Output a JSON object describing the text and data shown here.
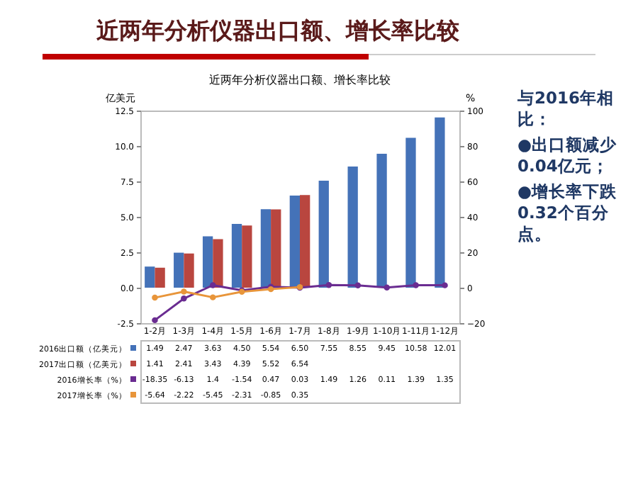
{
  "chart_data": {
    "type": "bar",
    "title": "近两年分析仪器出口额、增长率比较",
    "subtitle": "近两年分析仪器出口额、增长率比较",
    "ylabel": "亿美元",
    "y2label": "%",
    "categories": [
      "1-2月",
      "1-3月",
      "1-4月",
      "1-5月",
      "1-6月",
      "1-7月",
      "1-8月",
      "1-9月",
      "1-10月",
      "1-11月",
      "1-12月"
    ],
    "series": [
      {
        "name": "2016出口额（亿美元）",
        "color": "#4472b8",
        "values": [
          1.49,
          2.47,
          3.63,
          4.5,
          5.54,
          6.5,
          7.55,
          8.55,
          9.45,
          10.58,
          12.01
        ],
        "value_labels": [
          "1.49",
          "2.47",
          "3.63",
          "4.50",
          "5.54",
          "6.50",
          "7.55",
          "8.55",
          "9.45",
          "10.58",
          "12.01"
        ]
      },
      {
        "name": "2017出口额（亿美元）",
        "color": "#b9463f",
        "values": [
          1.41,
          2.41,
          3.43,
          4.39,
          5.52,
          6.54,
          null,
          null,
          null,
          null,
          null
        ],
        "value_labels": [
          "1.41",
          "2.41",
          "3.43",
          "4.39",
          "5.52",
          "6.54",
          null,
          null,
          null,
          null,
          null
        ]
      },
      {
        "name": "2016增长率（%）",
        "type": "line",
        "axis": "y2",
        "color": "#6a2c91",
        "values": [
          -18.35,
          -6.13,
          1.4,
          -1.54,
          0.47,
          0.03,
          1.49,
          1.26,
          0.11,
          1.39,
          1.35
        ],
        "value_labels": [
          "-18.35",
          "-6.13",
          "1.4",
          "-1.54",
          "0.47",
          "0.03",
          "1.49",
          "1.26",
          "0.11",
          "1.39",
          "1.35"
        ]
      },
      {
        "name": "2017增长率（%）",
        "type": "line",
        "axis": "y2",
        "color": "#e8953a",
        "values": [
          -5.64,
          -2.22,
          -5.45,
          -2.31,
          -0.85,
          0.35,
          null,
          null,
          null,
          null,
          null
        ],
        "value_labels": [
          "-5.64",
          "-2.22",
          "-5.45",
          "-2.31",
          "-0.85",
          "0.35",
          null,
          null,
          null,
          null,
          null
        ]
      }
    ],
    "ylim": [
      -2.5,
      12.5
    ],
    "yticks": [
      {
        "value": -2.5,
        "label": "-2.5"
      },
      {
        "value": 0,
        "label": "0.0"
      },
      {
        "value": 2.5,
        "label": "2.5"
      },
      {
        "value": 5,
        "label": "5.0"
      },
      {
        "value": 7.5,
        "label": "7.5"
      },
      {
        "value": 10,
        "label": "10.0"
      },
      {
        "value": 12.5,
        "label": "12.5"
      }
    ],
    "y2lim": [
      -20,
      100
    ],
    "y2ticks": [
      -20,
      0,
      20,
      40,
      60,
      80,
      100
    ],
    "marker": "circle",
    "legend": "bottom",
    "annotations": [
      "与2016年相比：",
      "●出口额减少0.04亿元；",
      "●增长率下跌0.32个百分点。"
    ]
  }
}
